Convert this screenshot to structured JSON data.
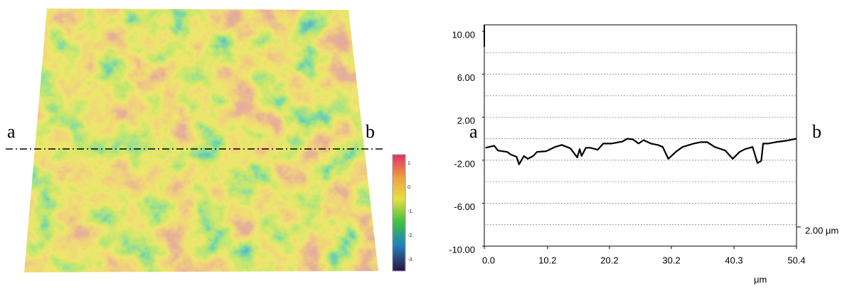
{
  "surface_image": {
    "label_start": "a",
    "label_end": "b",
    "colorbar_labels": [
      "1.",
      "0.",
      "-1.",
      "-2.",
      "-3."
    ]
  },
  "chart_data": {
    "type": "line",
    "x_label": "μm",
    "label_start": "a",
    "label_end": "b",
    "scale_annotation": "2.00 μm",
    "color": "#000000",
    "grid": true,
    "xlim": [
      0,
      50.4
    ],
    "xticks": [
      {
        "value": 0,
        "label": "0.0"
      },
      10.2,
      20.2,
      30.2,
      40.3,
      50.4
    ],
    "ylim": [
      -10,
      10.6
    ],
    "yticks": [
      {
        "value": 10,
        "label": "10.00"
      },
      {
        "value": 6,
        "label": "6.00"
      },
      {
        "value": 2,
        "label": "2.00"
      },
      {
        "value": -2,
        "label": "-2.00"
      },
      {
        "value": -6,
        "label": "-6.00"
      },
      {
        "value": -10,
        "label": "-10.00"
      }
    ],
    "grid_lines": [
      8,
      6,
      4,
      2,
      0,
      -2,
      -4,
      -6,
      -8
    ],
    "x": [
      0.2,
      1.6,
      2.2,
      3.7,
      4.3,
      5.2,
      5.6,
      6.4,
      7.0,
      7.9,
      8.5,
      10.0,
      11.4,
      12.5,
      13.9,
      15.0,
      15.4,
      15.7,
      16.4,
      17.1,
      18.3,
      19.2,
      20.5,
      22.3,
      23.1,
      24.0,
      24.9,
      25.7,
      26.9,
      28.0,
      28.8,
      29.7,
      30.9,
      32.0,
      33.8,
      34.9,
      36.0,
      37.2,
      38.9,
      40.1,
      41.2,
      42.1,
      43.3,
      44.1,
      44.7,
      45.0,
      45.8,
      47.0,
      48.7,
      50.4
    ],
    "values": [
      -0.84,
      -0.65,
      -1.1,
      -1.23,
      -1.48,
      -1.68,
      -2.39,
      -1.61,
      -1.87,
      -1.61,
      -1.23,
      -1.16,
      -0.77,
      -0.58,
      -0.9,
      -1.74,
      -0.97,
      -1.61,
      -0.84,
      -0.84,
      -1.03,
      -0.45,
      -0.45,
      -0.26,
      0.0,
      -0.06,
      -0.45,
      -0.13,
      -0.45,
      -0.58,
      -0.77,
      -1.87,
      -1.23,
      -0.77,
      -0.45,
      -0.32,
      -0.32,
      -0.77,
      -1.1,
      -1.87,
      -1.23,
      -0.97,
      -0.77,
      -2.26,
      -2.06,
      -0.45,
      -0.45,
      -0.32,
      -0.19,
      0.0
    ]
  }
}
